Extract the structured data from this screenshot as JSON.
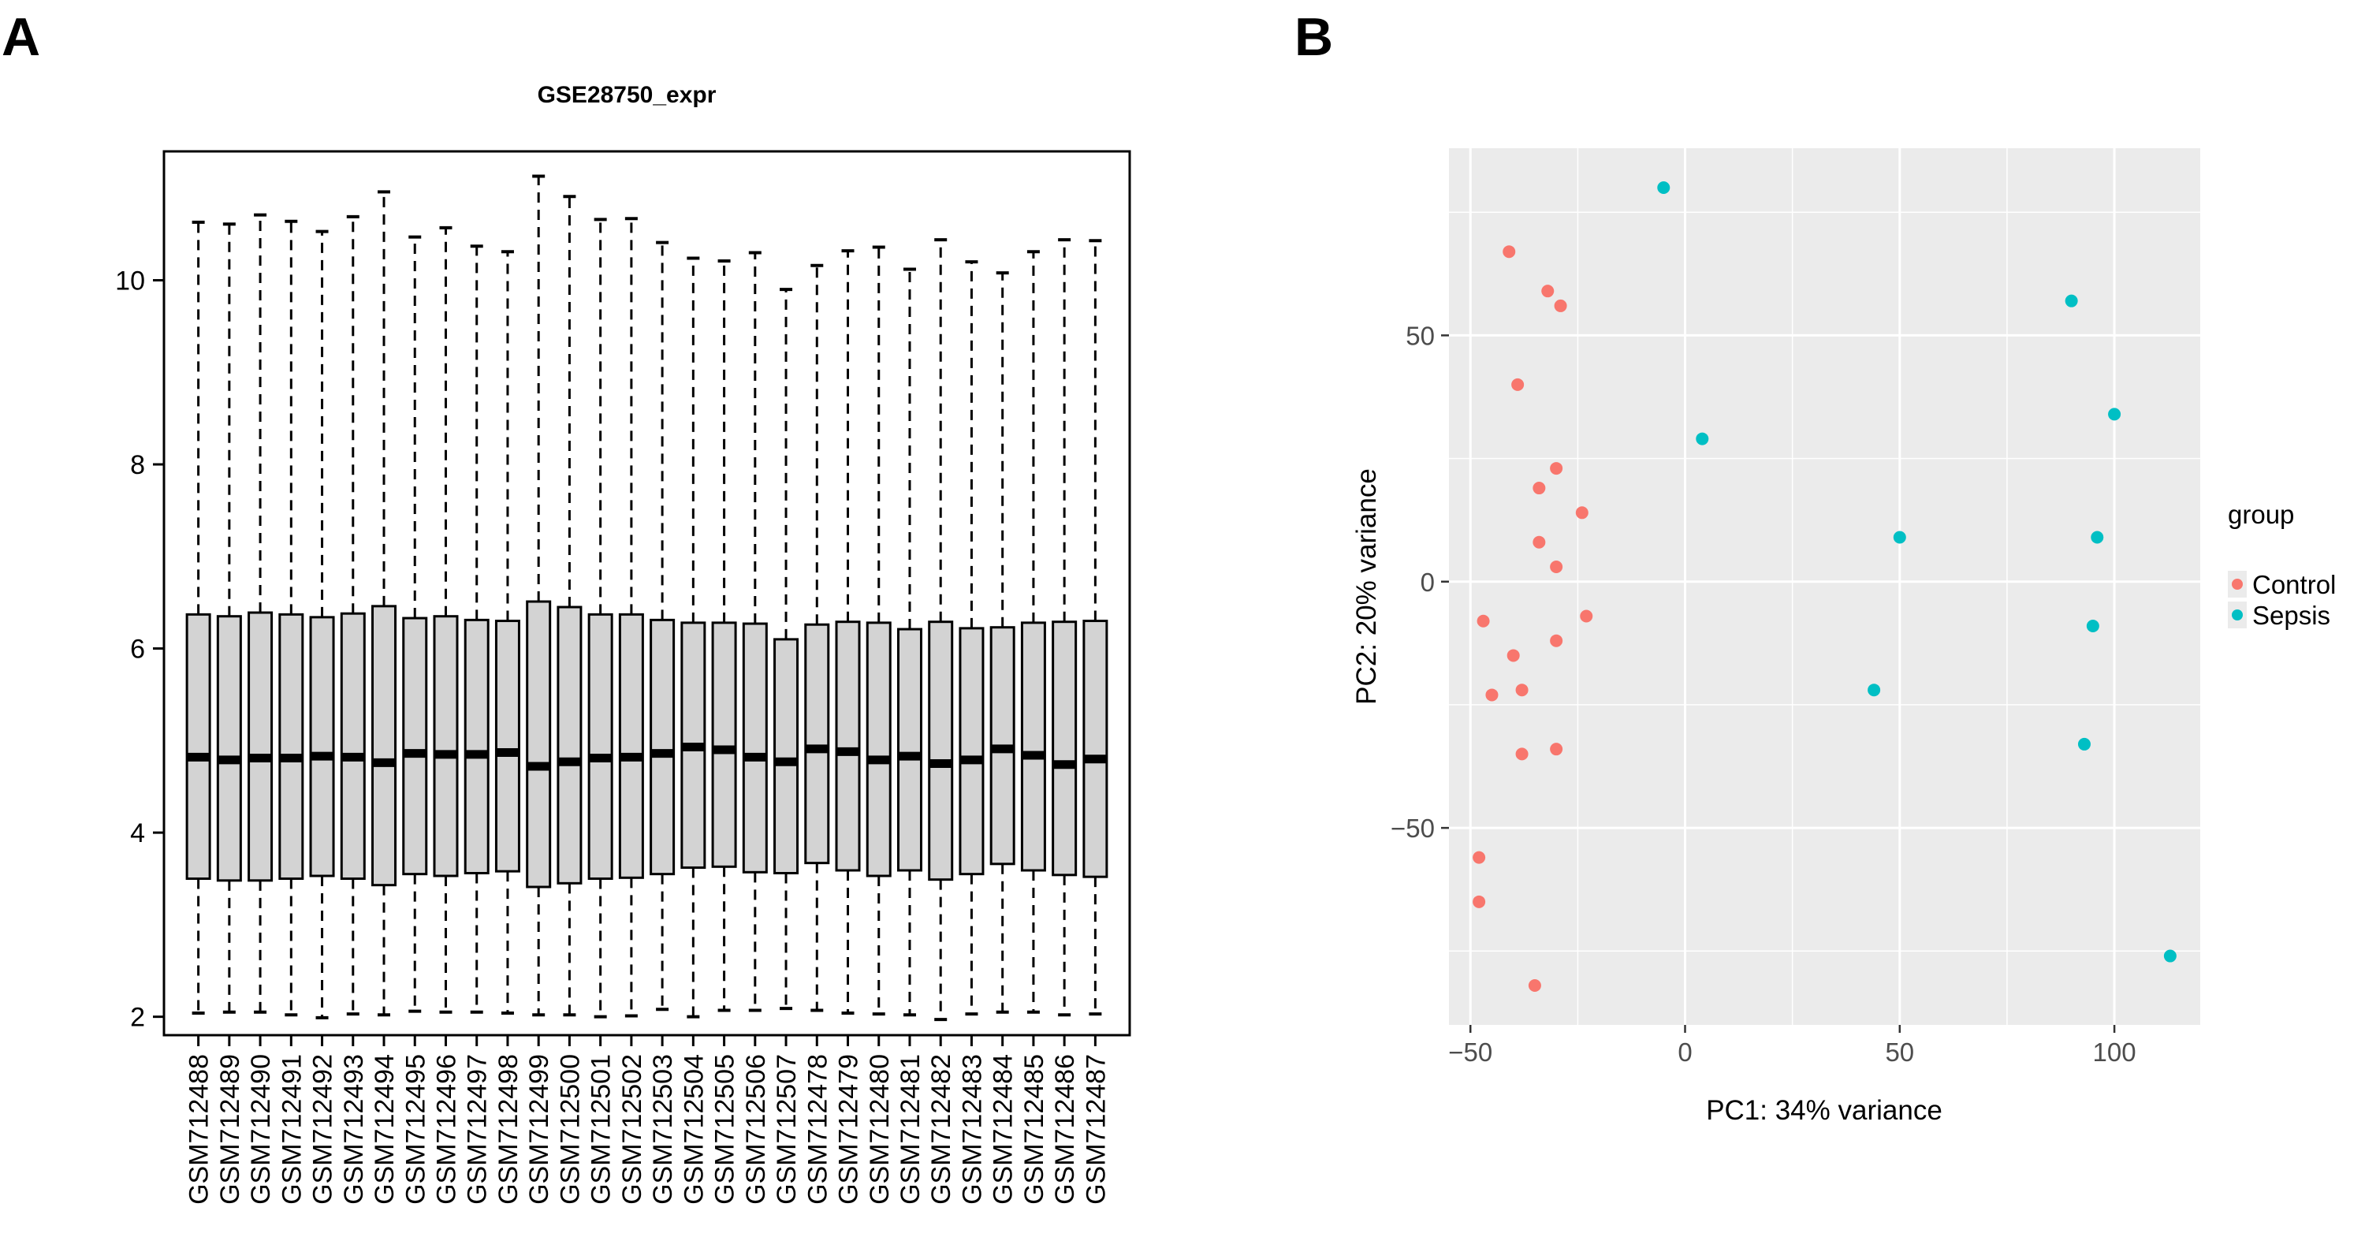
{
  "panel_labels": {
    "a": "A",
    "b": "B"
  },
  "chart_data": [
    {
      "type": "box",
      "title": "GSE28750_expr",
      "xlabel": "",
      "ylabel": "",
      "ylim": [
        1.8,
        11.4
      ],
      "yticks": [
        2,
        4,
        6,
        8,
        10
      ],
      "grid": false,
      "colors": {
        "box_fill": "#d3d3d3",
        "stroke": "#000000"
      },
      "categories": [
        "GSM712488",
        "GSM712489",
        "GSM712490",
        "GSM712491",
        "GSM712492",
        "GSM712493",
        "GSM712494",
        "GSM712495",
        "GSM712496",
        "GSM712497",
        "GSM712498",
        "GSM712499",
        "GSM712500",
        "GSM712501",
        "GSM712502",
        "GSM712503",
        "GSM712504",
        "GSM712505",
        "GSM712506",
        "GSM712507",
        "GSM712478",
        "GSM712479",
        "GSM712480",
        "GSM712481",
        "GSM712482",
        "GSM712483",
        "GSM712484",
        "GSM712485",
        "GSM712486",
        "GSM712487"
      ],
      "boxes": [
        {
          "min": 2.04,
          "q1": 3.5,
          "median": 4.82,
          "q3": 6.37,
          "max": 10.63
        },
        {
          "min": 2.05,
          "q1": 3.48,
          "median": 4.79,
          "q3": 6.35,
          "max": 10.61
        },
        {
          "min": 2.05,
          "q1": 3.48,
          "median": 4.81,
          "q3": 6.39,
          "max": 10.71
        },
        {
          "min": 2.02,
          "q1": 3.5,
          "median": 4.81,
          "q3": 6.37,
          "max": 10.64
        },
        {
          "min": 1.99,
          "q1": 3.53,
          "median": 4.83,
          "q3": 6.34,
          "max": 10.53
        },
        {
          "min": 2.03,
          "q1": 3.5,
          "median": 4.82,
          "q3": 6.38,
          "max": 10.69
        },
        {
          "min": 2.02,
          "q1": 3.43,
          "median": 4.76,
          "q3": 6.46,
          "max": 10.96
        },
        {
          "min": 2.06,
          "q1": 3.55,
          "median": 4.86,
          "q3": 6.33,
          "max": 10.47
        },
        {
          "min": 2.05,
          "q1": 3.53,
          "median": 4.85,
          "q3": 6.35,
          "max": 10.57
        },
        {
          "min": 2.05,
          "q1": 3.56,
          "median": 4.85,
          "q3": 6.31,
          "max": 10.37
        },
        {
          "min": 2.04,
          "q1": 3.58,
          "median": 4.87,
          "q3": 6.3,
          "max": 10.31
        },
        {
          "min": 2.02,
          "q1": 3.41,
          "median": 4.72,
          "q3": 6.51,
          "max": 11.13
        },
        {
          "min": 2.02,
          "q1": 3.45,
          "median": 4.77,
          "q3": 6.45,
          "max": 10.91
        },
        {
          "min": 2.0,
          "q1": 3.5,
          "median": 4.81,
          "q3": 6.37,
          "max": 10.66
        },
        {
          "min": 2.01,
          "q1": 3.51,
          "median": 4.82,
          "q3": 6.37,
          "max": 10.67
        },
        {
          "min": 2.08,
          "q1": 3.55,
          "median": 4.86,
          "q3": 6.31,
          "max": 10.41
        },
        {
          "min": 2.0,
          "q1": 3.62,
          "median": 4.93,
          "q3": 6.28,
          "max": 10.24
        },
        {
          "min": 2.07,
          "q1": 3.63,
          "median": 4.9,
          "q3": 6.28,
          "max": 10.21
        },
        {
          "min": 2.07,
          "q1": 3.57,
          "median": 4.82,
          "q3": 6.27,
          "max": 10.3
        },
        {
          "min": 2.09,
          "q1": 3.56,
          "median": 4.77,
          "q3": 6.1,
          "max": 9.9
        },
        {
          "min": 2.07,
          "q1": 3.67,
          "median": 4.91,
          "q3": 6.26,
          "max": 10.16
        },
        {
          "min": 2.04,
          "q1": 3.59,
          "median": 4.88,
          "q3": 6.29,
          "max": 10.32
        },
        {
          "min": 2.03,
          "q1": 3.53,
          "median": 4.79,
          "q3": 6.28,
          "max": 10.36
        },
        {
          "min": 2.02,
          "q1": 3.59,
          "median": 4.83,
          "q3": 6.21,
          "max": 10.12
        },
        {
          "min": 1.97,
          "q1": 3.49,
          "median": 4.75,
          "q3": 6.29,
          "max": 10.44
        },
        {
          "min": 2.03,
          "q1": 3.55,
          "median": 4.79,
          "q3": 6.22,
          "max": 10.2
        },
        {
          "min": 2.05,
          "q1": 3.66,
          "median": 4.91,
          "q3": 6.23,
          "max": 10.08
        },
        {
          "min": 2.05,
          "q1": 3.59,
          "median": 4.84,
          "q3": 6.28,
          "max": 10.31
        },
        {
          "min": 2.02,
          "q1": 3.54,
          "median": 4.74,
          "q3": 6.29,
          "max": 10.44
        },
        {
          "min": 2.03,
          "q1": 3.52,
          "median": 4.8,
          "q3": 6.3,
          "max": 10.43
        }
      ]
    },
    {
      "type": "scatter",
      "title": "",
      "xlabel": "PC1: 34% variance",
      "ylabel": "PC2: 20% variance",
      "xlim": [
        -55,
        120
      ],
      "ylim": [
        -90,
        88
      ],
      "xticks": [
        -50,
        0,
        50,
        100
      ],
      "yticks": [
        -50,
        0,
        50
      ],
      "grid": true,
      "legend": {
        "title": "group",
        "position": "right"
      },
      "colors": {
        "panel_bg": "#ebebeb",
        "grid": "#ffffff"
      },
      "series": [
        {
          "name": "Control",
          "color": "#f8766d",
          "points": [
            [
              -41,
              67
            ],
            [
              -32,
              59
            ],
            [
              -29,
              56
            ],
            [
              -39,
              40
            ],
            [
              -30,
              23
            ],
            [
              -34,
              19
            ],
            [
              -24,
              14
            ],
            [
              -34,
              8
            ],
            [
              -30,
              3
            ],
            [
              -47,
              -8
            ],
            [
              -23,
              -7
            ],
            [
              -30,
              -12
            ],
            [
              -40,
              -15
            ],
            [
              -38,
              -22
            ],
            [
              -45,
              -23
            ],
            [
              -38,
              -35
            ],
            [
              -30,
              -34
            ],
            [
              -48,
              -56
            ],
            [
              -48,
              -65
            ],
            [
              -35,
              -82
            ]
          ]
        },
        {
          "name": "Sepsis",
          "color": "#00bfc4",
          "points": [
            [
              -5,
              80
            ],
            [
              90,
              57
            ],
            [
              100,
              34
            ],
            [
              4,
              29
            ],
            [
              50,
              9
            ],
            [
              96,
              9
            ],
            [
              95,
              -9
            ],
            [
              44,
              -22
            ],
            [
              93,
              -33
            ],
            [
              113,
              -76
            ]
          ]
        }
      ]
    }
  ]
}
